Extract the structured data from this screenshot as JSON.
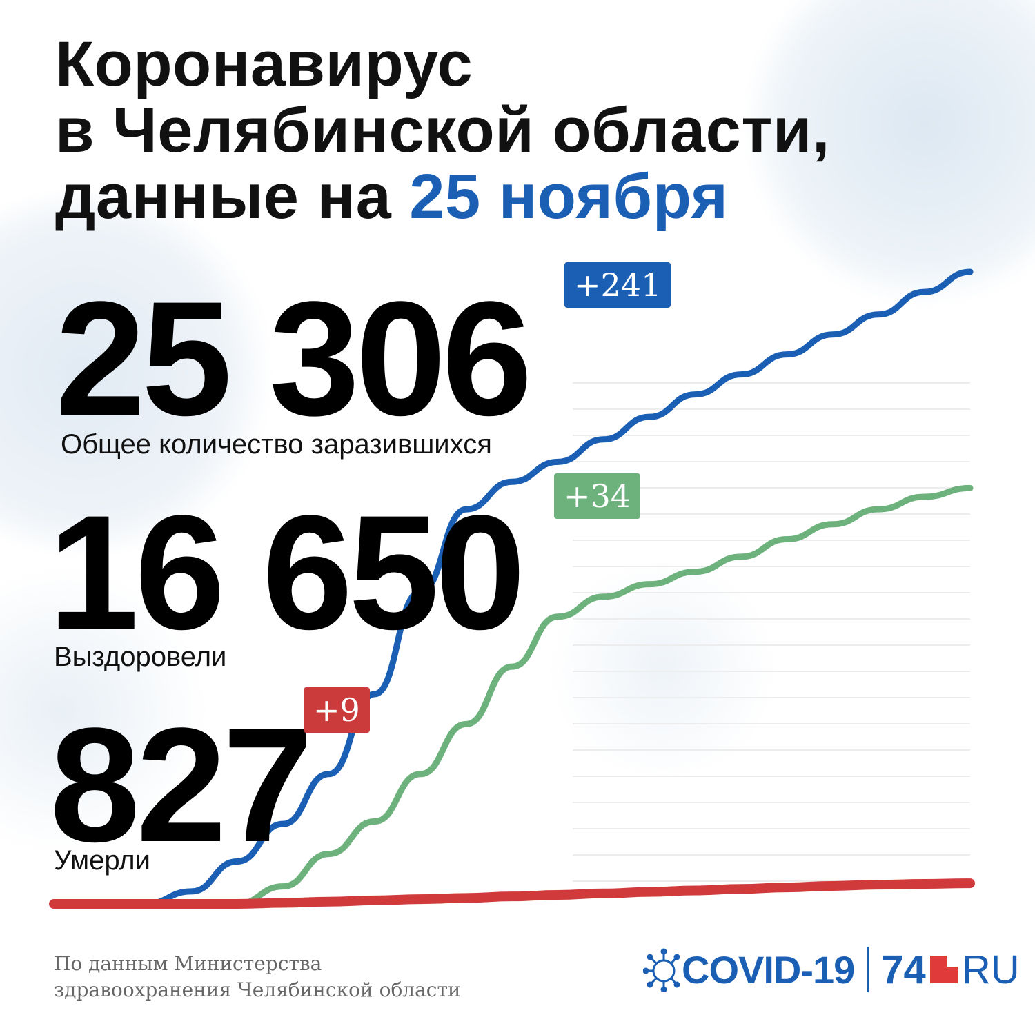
{
  "title": {
    "line1": "Коронавирус",
    "line2": "в Челябинской области,",
    "line3_prefix": "данные на ",
    "line3_date": "25 ноября"
  },
  "stats": {
    "infected": {
      "value": "25 306",
      "delta": "+241",
      "label": "Общее количество заразившихся"
    },
    "recovered": {
      "value": "16 650",
      "delta": "+34",
      "label": "Выздоровели"
    },
    "deaths": {
      "value": "827",
      "delta": "+9",
      "label": "Умерли"
    }
  },
  "source": {
    "line1": "По данным Министерства",
    "line2": "здравоохранения Челябинской области"
  },
  "logo": {
    "covid": "COVID-19",
    "num": "74",
    "ru": "RU"
  },
  "colors": {
    "infected": "#1a5fb4",
    "recovered": "#6db27c",
    "deaths": "#d03a3a"
  },
  "chart_data": {
    "type": "line",
    "x": [
      0,
      0.05,
      0.1,
      0.15,
      0.2,
      0.25,
      0.3,
      0.35,
      0.4,
      0.45,
      0.5,
      0.55,
      0.6,
      0.65,
      0.7,
      0.75,
      0.8,
      0.85,
      0.9,
      0.95,
      1
    ],
    "series": [
      {
        "name": "Общее количество заразившихся",
        "color": "#1a5fb4",
        "values": [
          0,
          0,
          0,
          500,
          1700,
          3200,
          5200,
          8400,
          12500,
          15800,
          16900,
          17700,
          18600,
          19500,
          20400,
          21200,
          22000,
          22800,
          23600,
          24500,
          25306
        ]
      },
      {
        "name": "Выздоровели",
        "color": "#6db27c",
        "values": [
          0,
          0,
          0,
          0,
          0,
          700,
          2000,
          3300,
          5200,
          7200,
          9500,
          11500,
          12300,
          12800,
          13300,
          13900,
          14600,
          15200,
          15800,
          16300,
          16650
        ]
      },
      {
        "name": "Умерли",
        "color": "#d03a3a",
        "values": [
          0,
          0,
          0,
          0,
          0,
          40,
          90,
          140,
          190,
          240,
          300,
          360,
          420,
          480,
          540,
          600,
          660,
          720,
          770,
          800,
          827
        ]
      }
    ],
    "ylim": [
      0,
      25306
    ]
  }
}
